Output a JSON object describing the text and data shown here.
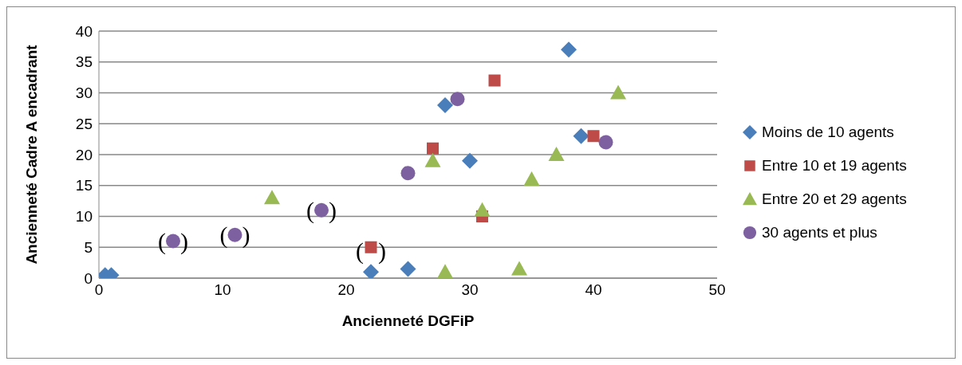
{
  "chart_data": {
    "type": "scatter",
    "xlabel": "Ancienneté DGFiP",
    "ylabel": "Ancienneté Cadre A encadrant",
    "xlim": [
      0,
      50
    ],
    "xticks": [
      0,
      10,
      20,
      30,
      40,
      50
    ],
    "ylim": [
      0,
      40
    ],
    "yticks": [
      0,
      5,
      10,
      15,
      20,
      25,
      30,
      35,
      40
    ],
    "grid": "y",
    "legend": "right",
    "series": [
      {
        "name": "Moins de 10 agents",
        "color": "#4a7ebb",
        "marker": "diamond",
        "x": [
          0.5,
          1,
          22,
          25,
          28,
          30,
          38,
          39
        ],
        "values": [
          0.5,
          0.5,
          1,
          1.5,
          28,
          19,
          37,
          23
        ]
      },
      {
        "name": "Entre 10 et 19 agents",
        "color": "#be4b48",
        "marker": "square",
        "x": [
          22,
          27,
          31,
          32,
          40
        ],
        "values": [
          5,
          21,
          10,
          32,
          23
        ]
      },
      {
        "name": "Entre 20 et 29 agents",
        "color": "#98b954",
        "marker": "triangle",
        "x": [
          14,
          27,
          28,
          31,
          34,
          35,
          37,
          42
        ],
        "values": [
          13,
          19,
          1,
          11,
          1.5,
          16,
          20,
          30
        ]
      },
      {
        "name": "30 agents et plus",
        "color": "#7d60a0",
        "marker": "circle",
        "x": [
          6,
          11,
          18,
          25,
          29,
          41
        ],
        "values": [
          6,
          7,
          11,
          17,
          29,
          22
        ]
      }
    ],
    "annotations": [
      {
        "text": "()",
        "x": 6,
        "y": 6
      },
      {
        "text": "()",
        "x": 11,
        "y": 7
      },
      {
        "text": "()",
        "x": 18,
        "y": 11
      },
      {
        "text": "()",
        "x": 22,
        "y": 4.5
      }
    ]
  }
}
